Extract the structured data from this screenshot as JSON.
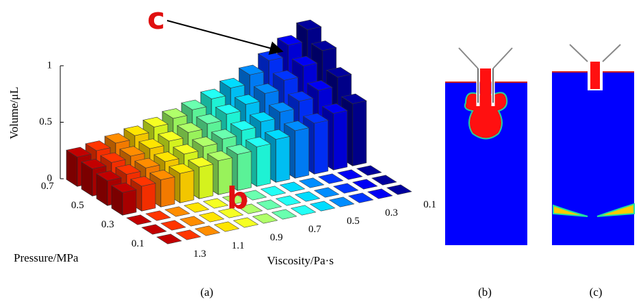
{
  "chart_data": {
    "type": "bar3d",
    "zlabel": "Volume/μL",
    "ylabel": "Pressure/MPa",
    "xlabel": "Viscosity/Pa·s",
    "x": [
      0.1,
      null,
      0.3,
      null,
      0.5,
      null,
      0.7,
      null,
      0.9,
      null,
      1.1,
      null,
      1.3
    ],
    "y": [
      0.1,
      null,
      0.3,
      null,
      0.5,
      null,
      0.7
    ],
    "colors": [
      "#00008f",
      "#0000df",
      "#0030ff",
      "#0080ff",
      "#00c8ff",
      "#20ffdf",
      "#60ff9f",
      "#a0ff60",
      "#dfff20",
      "#ffd000",
      "#ff8000",
      "#ff3000",
      "#b00000"
    ],
    "values": [
      [
        0,
        0,
        0,
        0,
        0,
        0,
        0,
        0,
        0,
        0,
        0,
        0,
        0
      ],
      [
        0,
        0,
        0,
        0,
        0,
        0,
        0,
        0,
        0,
        0,
        0,
        0,
        0
      ],
      [
        0,
        0,
        0,
        0,
        0,
        0,
        0,
        0,
        0,
        0,
        0,
        0,
        0
      ],
      [
        0.55,
        0.5,
        0.45,
        0.42,
        0.38,
        0.35,
        0.32,
        0.3,
        0.28,
        0.26,
        0.24,
        0.22,
        0.2
      ],
      [
        0.7,
        0.62,
        0.56,
        0.5,
        0.45,
        0.41,
        0.37,
        0.34,
        0.31,
        0.28,
        0.26,
        0.24,
        0.22
      ],
      [
        0.85,
        0.75,
        0.66,
        0.58,
        0.52,
        0.47,
        0.42,
        0.38,
        0.34,
        0.31,
        0.28,
        0.26,
        0.24
      ],
      [
        0.95,
        0.85,
        0.75,
        0.66,
        0.58,
        0.52,
        0.46,
        0.42,
        0.38,
        0.34,
        0.31,
        0.28,
        0.26
      ]
    ],
    "zlim": [
      0,
      1
    ],
    "zticks": [
      0,
      0.5,
      1
    ],
    "annotations": [
      "c",
      "b"
    ]
  },
  "panel_labels": [
    "(a)",
    "(b)",
    "(c)"
  ]
}
